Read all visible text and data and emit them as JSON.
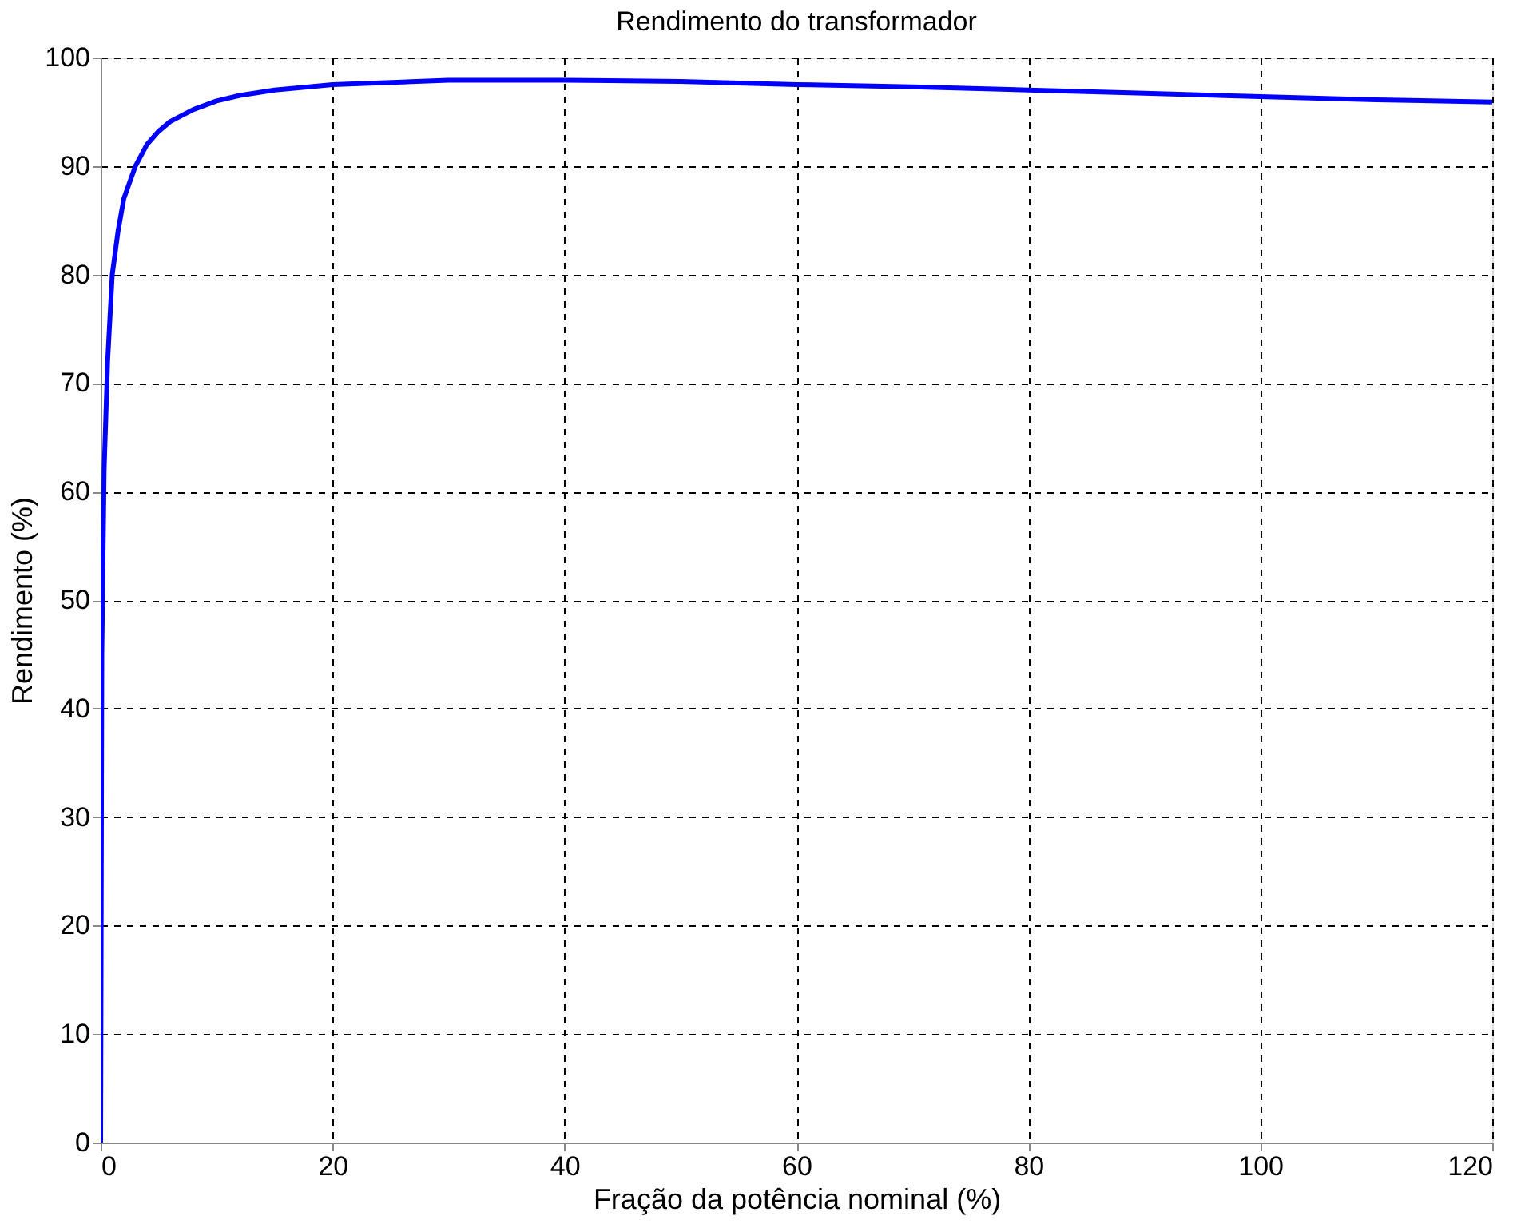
{
  "chart_data": {
    "type": "line",
    "title": "Rendimento do transformador",
    "xlabel": "Fração da potência nominal (%)",
    "ylabel": "Rendimento (%)",
    "series": [
      {
        "color": "#0000ff",
        "x": [
          0,
          0.1,
          0.3,
          0.6,
          1,
          1.5,
          2,
          3,
          4,
          5,
          6,
          8,
          10,
          12,
          15,
          20,
          30,
          40,
          50,
          60,
          70,
          80,
          90,
          100,
          110,
          120
        ],
        "values": [
          0,
          45,
          62,
          72,
          80,
          84,
          87,
          90,
          92,
          93.2,
          94.1,
          95.2,
          96,
          96.5,
          97,
          97.5,
          97.9,
          97.9,
          97.8,
          97.5,
          97.3,
          97,
          96.7,
          96.4,
          96.1,
          95.9
        ]
      }
    ],
    "xlim": [
      0,
      120
    ],
    "xticks": [
      0,
      20,
      40,
      60,
      80,
      100,
      120
    ],
    "ylim": [
      0,
      100
    ],
    "yticks": [
      0,
      10,
      20,
      30,
      40,
      50,
      60,
      70,
      80,
      90,
      100
    ],
    "grid": true,
    "marker": "none",
    "line_style": "solid"
  }
}
